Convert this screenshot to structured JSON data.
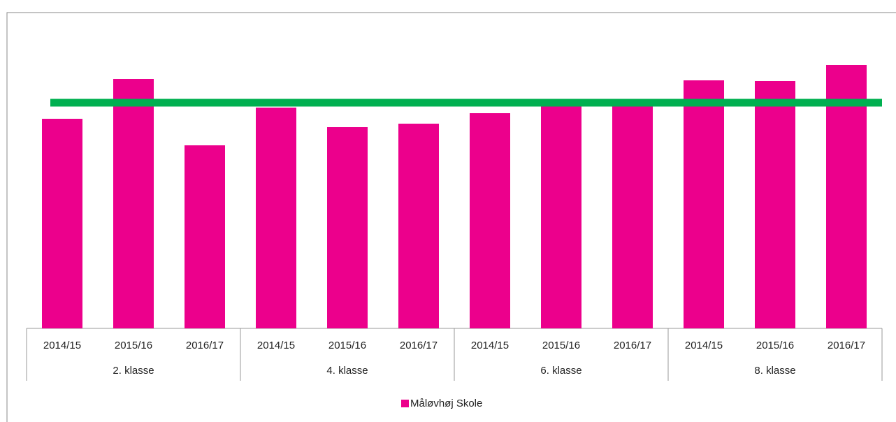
{
  "chart_data": {
    "type": "bar",
    "groups": [
      {
        "name": "2. klasse",
        "categories": [
          "2014/15",
          "2015/16",
          "2016/17"
        ]
      },
      {
        "name": "4. klasse",
        "categories": [
          "2014/15",
          "2015/16",
          "2016/17"
        ]
      },
      {
        "name": "6. klasse",
        "categories": [
          "2014/15",
          "2015/16",
          "2016/17"
        ]
      },
      {
        "name": "8. klasse",
        "categories": [
          "2014/15",
          "2015/16",
          "2016/17"
        ]
      }
    ],
    "series": [
      {
        "name": "Måløvhøj Skole",
        "color": "#ec008c",
        "values": [
          300,
          357,
          262,
          316,
          288,
          293,
          308,
          320,
          320,
          355,
          354,
          377
        ]
      }
    ],
    "reference_line": {
      "value": 323,
      "color": "#00b050"
    },
    "legend": "bottom"
  }
}
